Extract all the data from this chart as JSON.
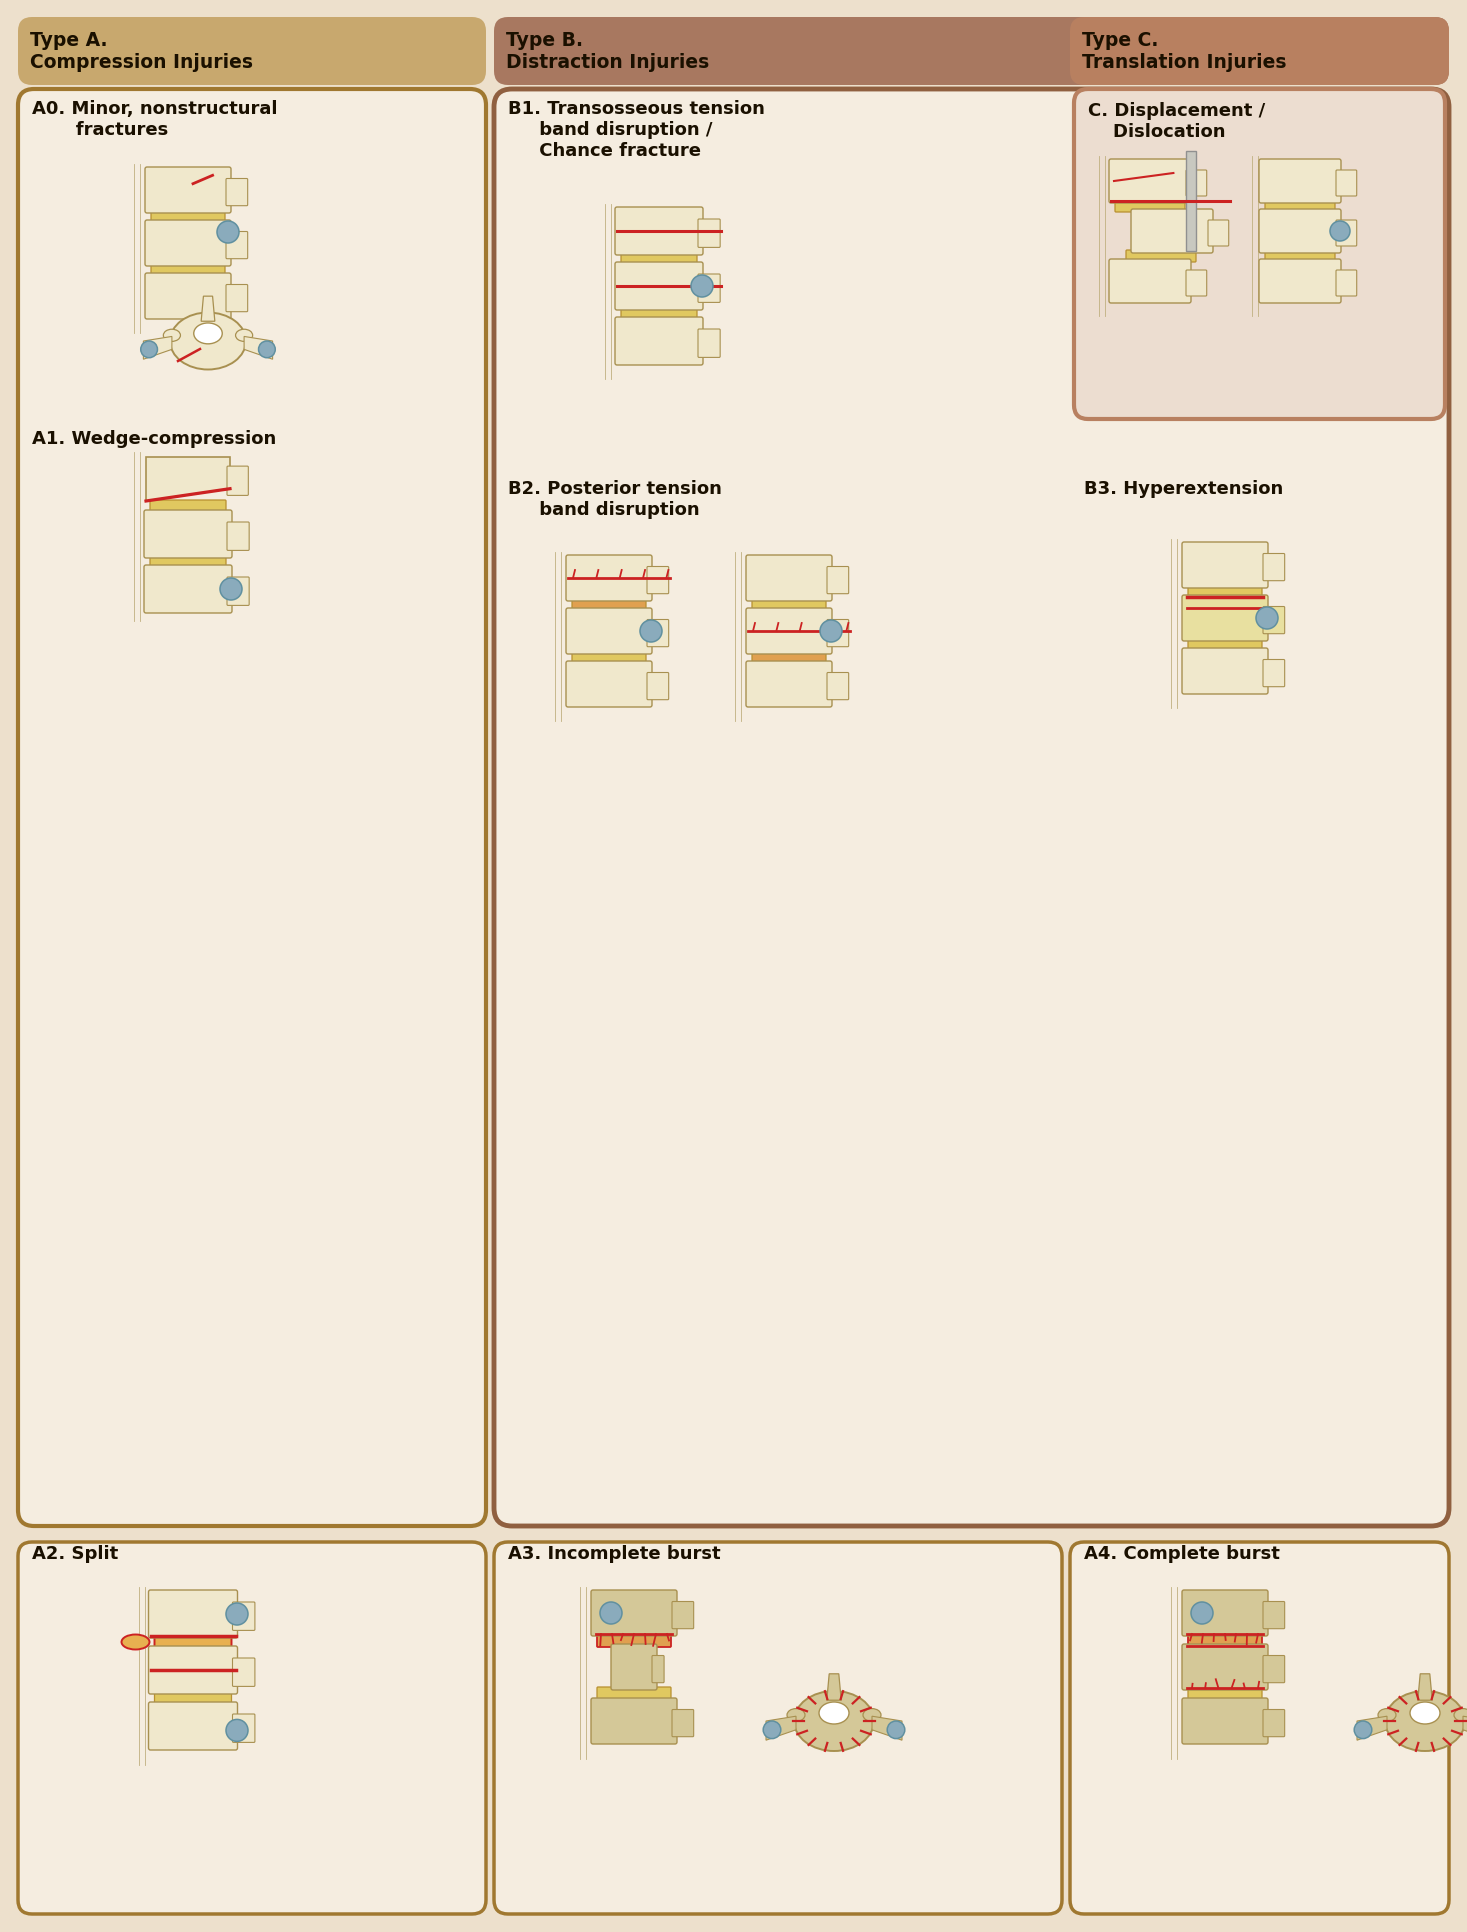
{
  "fig_width": 14.67,
  "fig_height": 19.33,
  "dpi": 100,
  "bg_color": "#ede0cc",
  "header_a_color": "#c8a86e",
  "header_b_color": "#a87860",
  "header_c_color": "#b88060",
  "box_bg": "#f5ede0",
  "box_border_a": "#a07830",
  "box_border_b": "#906040",
  "box_border_c": "#a06838",
  "bone_cream": "#f0e8cc",
  "bone_tan": "#d4c898",
  "disc_yellow": "#e0c860",
  "fracture_red": "#cc2222",
  "blue_grey": "#8aabbc",
  "dark_text": "#1a1000",
  "header_a_text1": "Type A.",
  "header_a_text2": "Compression Injuries",
  "header_b_text1": "Type B.",
  "header_b_text2": "Distraction Injuries",
  "header_c_text1": "Type C.",
  "header_c_text2": "Translation Injuries",
  "label_A0": "A0. Minor, nonstructural\n       fractures",
  "label_A1": "A1. Wedge-compression",
  "label_A2": "A2. Split",
  "label_A3": "A3. Incomplete burst",
  "label_A4": "A4. Complete burst",
  "label_B1": "B1. Transosseous tension\n     band disruption /\n     Chance fracture",
  "label_B2": "B2. Posterior tension\n     band disruption",
  "label_B3": "B3. Hyperextension",
  "label_C": "C. Displacement /\n    Dislocation"
}
